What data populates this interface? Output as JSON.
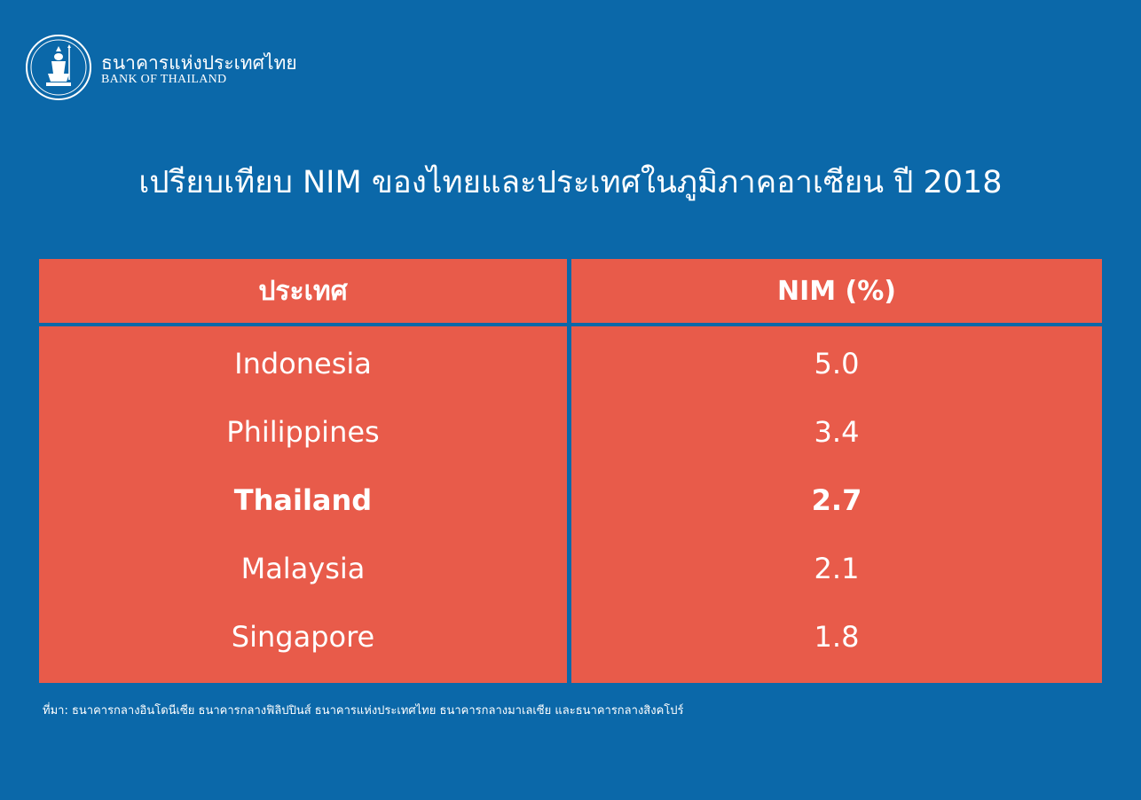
{
  "brand": {
    "name_thai": "ธนาคารแห่งประเทศไทย",
    "name_en": "BANK OF THAILAND"
  },
  "title": "เปรียบเทียบ NIM ของไทยและประเทศในภูมิภาคอาเซียน ปี 2018",
  "chart_data": {
    "type": "table",
    "columns": [
      "ประเทศ",
      "NIM (%)"
    ],
    "rows": [
      {
        "country": "Indonesia",
        "nim": "5.0",
        "highlight": false
      },
      {
        "country": "Philippines",
        "nim": "3.4",
        "highlight": false
      },
      {
        "country": "Thailand",
        "nim": "2.7",
        "highlight": true
      },
      {
        "country": "Malaysia",
        "nim": "2.1",
        "highlight": false
      },
      {
        "country": "Singapore",
        "nim": "1.8",
        "highlight": false
      }
    ]
  },
  "source": "ที่มา: ธนาคารกลางอินโดนีเซีย ธนาคารกลางฟิลิปปินส์ ธนาคารแห่งประเทศไทย ธนาคารกลางมาเลเซีย และธนาคารกลางสิงคโปร์",
  "colors": {
    "background": "#0b68a9",
    "table_fill": "#e85b4a",
    "text": "#ffffff"
  }
}
